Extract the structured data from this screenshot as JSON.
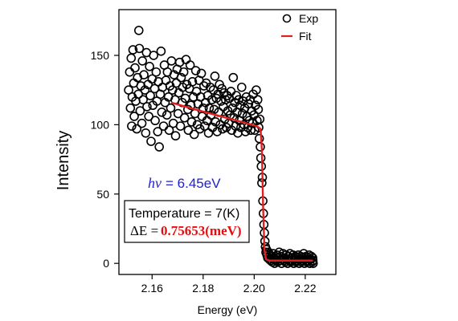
{
  "chart_data": {
    "type": "scatter",
    "xlabel": "Energy (eV)",
    "ylabel": "Intensity",
    "xlim": [
      2.147,
      2.232
    ],
    "ylim": [
      -8,
      183
    ],
    "xticks": [
      "2.16",
      "2.18",
      "2.20",
      "2.22"
    ],
    "yticks": [
      "0",
      "50",
      "100",
      "150"
    ],
    "legend_position": "top-right",
    "legend": [
      {
        "label": "Exp",
        "marker": "open-circle",
        "color": "#000000"
      },
      {
        "label": "Fit",
        "marker": "line",
        "color": "#e02020"
      }
    ],
    "annotations": {
      "hv_symbol": "hν",
      "hv_value": " = 6.45eV",
      "temperature": "Temperature = 7(K)",
      "delta_e_label": "ΔE = ",
      "delta_e_value": "0.75653(meV)"
    },
    "series": [
      {
        "name": "Exp",
        "style": "open-circle",
        "points": [
          [
            2.1508,
            125
          ],
          [
            2.1512,
            138
          ],
          [
            2.1515,
            112
          ],
          [
            2.1518,
            148
          ],
          [
            2.152,
            99
          ],
          [
            2.1522,
            120
          ],
          [
            2.1525,
            154
          ],
          [
            2.1528,
            130
          ],
          [
            2.153,
            106
          ],
          [
            2.1533,
            141
          ],
          [
            2.1536,
            117
          ],
          [
            2.154,
            97
          ],
          [
            2.1543,
            134
          ],
          [
            2.1546,
            122
          ],
          [
            2.1548,
            168
          ],
          [
            2.155,
            155
          ],
          [
            2.1553,
            110
          ],
          [
            2.1556,
            128
          ],
          [
            2.156,
            101
          ],
          [
            2.1562,
            146
          ],
          [
            2.1565,
            118
          ],
          [
            2.1568,
            136
          ],
          [
            2.1572,
            125
          ],
          [
            2.1575,
            94
          ],
          [
            2.1578,
            152
          ],
          [
            2.158,
            113
          ],
          [
            2.1584,
            129
          ],
          [
            2.1587,
            106
          ],
          [
            2.159,
            142
          ],
          [
            2.1593,
            121
          ],
          [
            2.1596,
            88
          ],
          [
            2.16,
            133
          ],
          [
            2.1603,
            114
          ],
          [
            2.1606,
            150
          ],
          [
            2.161,
            126
          ],
          [
            2.1612,
            103
          ],
          [
            2.1616,
            138
          ],
          [
            2.1619,
            117
          ],
          [
            2.1622,
            95
          ],
          [
            2.1625,
            131
          ],
          [
            2.1628,
            84
          ],
          [
            2.1632,
            122
          ],
          [
            2.1635,
            153
          ],
          [
            2.1638,
            109
          ],
          [
            2.1641,
            127
          ],
          [
            2.1645,
            99
          ],
          [
            2.1648,
            143
          ],
          [
            2.1651,
            116
          ],
          [
            2.1654,
            132
          ],
          [
            2.1658,
            107
          ],
          [
            2.166,
            138
          ],
          [
            2.1664,
            120
          ],
          [
            2.1667,
            96
          ],
          [
            2.167,
            128
          ],
          [
            2.1673,
            112
          ],
          [
            2.1676,
            146
          ],
          [
            2.168,
            125
          ],
          [
            2.1683,
            101
          ],
          [
            2.1686,
            136
          ],
          [
            2.169,
            118
          ],
          [
            2.1692,
            92
          ],
          [
            2.1695,
            130
          ],
          [
            2.1698,
            140
          ],
          [
            2.1702,
            108
          ],
          [
            2.1705,
            123
          ],
          [
            2.1708,
            145
          ],
          [
            2.1711,
            99
          ],
          [
            2.1714,
            134
          ],
          [
            2.1718,
            116
          ],
          [
            2.172,
            127
          ],
          [
            2.1724,
            138
          ],
          [
            2.1727,
            105
          ],
          [
            2.173,
            119
          ],
          [
            2.1733,
            147
          ],
          [
            2.1736,
            129
          ],
          [
            2.174,
            111
          ],
          [
            2.1742,
            96
          ],
          [
            2.1746,
            126
          ],
          [
            2.1749,
            143
          ],
          [
            2.1752,
            114
          ],
          [
            2.1755,
            102
          ],
          [
            2.1758,
            131
          ],
          [
            2.1762,
            120
          ],
          [
            2.1765,
            93
          ],
          [
            2.1768,
            108
          ],
          [
            2.1771,
            139
          ],
          [
            2.1774,
            124
          ],
          [
            2.1777,
            100
          ],
          [
            2.178,
            115
          ],
          [
            2.1784,
            132
          ],
          [
            2.1787,
            97
          ],
          [
            2.179,
            120
          ],
          [
            2.1793,
            137
          ],
          [
            2.1796,
            106
          ],
          [
            2.18,
            112
          ],
          [
            2.1803,
            128
          ],
          [
            2.1806,
            99
          ],
          [
            2.1809,
            116
          ],
          [
            2.1812,
            130
          ],
          [
            2.1815,
            103
          ],
          [
            2.1818,
            121
          ],
          [
            2.1821,
            94
          ],
          [
            2.1824,
            112
          ],
          [
            2.1828,
            127
          ],
          [
            2.1831,
            107
          ],
          [
            2.1834,
            118
          ],
          [
            2.1837,
            98
          ],
          [
            2.184,
            125
          ],
          [
            2.1843,
            111
          ],
          [
            2.1846,
            135
          ],
          [
            2.1849,
            102
          ],
          [
            2.1852,
            119
          ],
          [
            2.1855,
            95
          ],
          [
            2.1858,
            122
          ],
          [
            2.1861,
            109
          ],
          [
            2.1864,
            129
          ],
          [
            2.1867,
            100
          ],
          [
            2.187,
            117
          ],
          [
            2.1873,
            126
          ],
          [
            2.1876,
            97
          ],
          [
            2.1879,
            113
          ],
          [
            2.1882,
            123
          ],
          [
            2.1885,
            104
          ],
          [
            2.1888,
            118
          ],
          [
            2.1891,
            98
          ],
          [
            2.1894,
            121
          ],
          [
            2.1897,
            110
          ],
          [
            2.19,
            101
          ],
          [
            2.1903,
            119
          ],
          [
            2.1906,
            107
          ],
          [
            2.1909,
            124
          ],
          [
            2.1912,
            96
          ],
          [
            2.1915,
            112
          ],
          [
            2.1918,
            134
          ],
          [
            2.1921,
            105
          ],
          [
            2.1924,
            116
          ],
          [
            2.1927,
            99
          ],
          [
            2.193,
            121
          ],
          [
            2.1933,
            109
          ],
          [
            2.1936,
            94
          ],
          [
            2.1939,
            118
          ],
          [
            2.1942,
            103
          ],
          [
            2.1945,
            114
          ],
          [
            2.1948,
            98
          ],
          [
            2.1951,
            127
          ],
          [
            2.1954,
            108
          ],
          [
            2.1957,
            117
          ],
          [
            2.196,
            100
          ],
          [
            2.1963,
            112
          ],
          [
            2.1966,
            95
          ],
          [
            2.1969,
            120
          ],
          [
            2.1972,
            106
          ],
          [
            2.1975,
            98
          ],
          [
            2.1978,
            115
          ],
          [
            2.1981,
            103
          ],
          [
            2.1984,
            118
          ],
          [
            2.1987,
            96
          ],
          [
            2.199,
            110
          ],
          [
            2.1993,
            101
          ],
          [
            2.1996,
            122
          ],
          [
            2.1999,
            107
          ],
          [
            2.2002,
            96
          ],
          [
            2.2005,
            114
          ],
          [
            2.2008,
            125
          ],
          [
            2.2011,
            103
          ],
          [
            2.2014,
            118
          ],
          [
            2.2016,
            111
          ],
          [
            2.2018,
            98
          ],
          [
            2.202,
            90
          ],
          [
            2.2022,
            104
          ],
          [
            2.2024,
            84
          ],
          [
            2.2026,
            76
          ],
          [
            2.2028,
            70
          ],
          [
            2.203,
            58
          ],
          [
            2.2032,
            62
          ],
          [
            2.2034,
            45
          ],
          [
            2.2036,
            36
          ],
          [
            2.2038,
            28
          ],
          [
            2.204,
            22
          ],
          [
            2.2042,
            16
          ],
          [
            2.2044,
            12
          ],
          [
            2.2046,
            8
          ],
          [
            2.2048,
            10
          ],
          [
            2.205,
            6
          ],
          [
            2.2053,
            4
          ],
          [
            2.2056,
            8
          ],
          [
            2.2059,
            3
          ],
          [
            2.2062,
            6
          ],
          [
            2.2065,
            2
          ],
          [
            2.2068,
            5
          ],
          [
            2.2071,
            1
          ],
          [
            2.2074,
            7
          ],
          [
            2.2077,
            3
          ],
          [
            2.208,
            0
          ],
          [
            2.2083,
            5
          ],
          [
            2.2086,
            2
          ],
          [
            2.2089,
            6
          ],
          [
            2.2092,
            1
          ],
          [
            2.2095,
            4
          ],
          [
            2.2098,
            8
          ],
          [
            2.2101,
            2
          ],
          [
            2.2104,
            5
          ],
          [
            2.2107,
            0
          ],
          [
            2.211,
            3
          ],
          [
            2.2113,
            7
          ],
          [
            2.2116,
            2
          ],
          [
            2.2119,
            4
          ],
          [
            2.2122,
            1
          ],
          [
            2.2125,
            6
          ],
          [
            2.2128,
            3
          ],
          [
            2.2131,
            0
          ],
          [
            2.2134,
            5
          ],
          [
            2.2137,
            2
          ],
          [
            2.214,
            7
          ],
          [
            2.2143,
            1
          ],
          [
            2.2146,
            4
          ],
          [
            2.2149,
            2
          ],
          [
            2.2152,
            6
          ],
          [
            2.2155,
            0
          ],
          [
            2.2158,
            3
          ],
          [
            2.2161,
            5
          ],
          [
            2.2164,
            1
          ],
          [
            2.2167,
            4
          ],
          [
            2.217,
            2
          ],
          [
            2.2173,
            6
          ],
          [
            2.2176,
            0
          ],
          [
            2.2179,
            3
          ],
          [
            2.2182,
            5
          ],
          [
            2.2185,
            1
          ],
          [
            2.2188,
            4
          ],
          [
            2.2191,
            2
          ],
          [
            2.2194,
            7
          ],
          [
            2.2197,
            0
          ],
          [
            2.22,
            3
          ],
          [
            2.2203,
            5
          ],
          [
            2.2206,
            1
          ],
          [
            2.2209,
            4
          ],
          [
            2.2212,
            2
          ],
          [
            2.2215,
            6
          ],
          [
            2.2218,
            0
          ],
          [
            2.2221,
            3
          ],
          [
            2.2224,
            5
          ],
          [
            2.2227,
            1
          ],
          [
            2.2229,
            4
          ],
          [
            2.223,
            2
          ],
          [
            2.2231,
            0
          ]
        ]
      },
      {
        "name": "Fit",
        "style": "line",
        "color": "#e02020",
        "points": [
          [
            2.1675,
            116
          ],
          [
            2.175,
            112
          ],
          [
            2.185,
            107
          ],
          [
            2.195,
            102
          ],
          [
            2.201,
            99
          ],
          [
            2.2025,
            97
          ],
          [
            2.203,
            82
          ],
          [
            2.2035,
            40
          ],
          [
            2.204,
            10
          ],
          [
            2.2046,
            3
          ],
          [
            2.206,
            2
          ],
          [
            2.223,
            2
          ]
        ]
      }
    ]
  }
}
